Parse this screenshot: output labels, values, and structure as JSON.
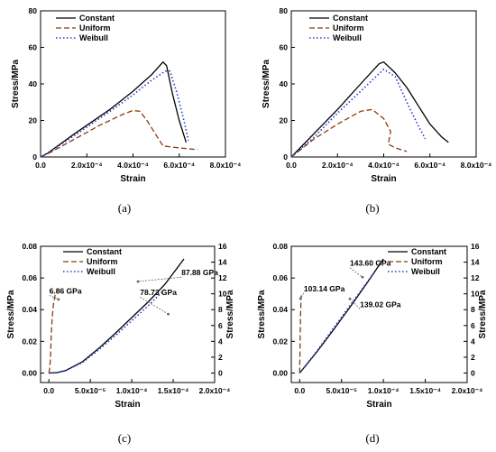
{
  "colors": {
    "Constant": "#000000",
    "Uniform": "#8b3a0f",
    "Weibull": "#1f3cc7",
    "annotation_arrow": "#666666"
  },
  "chart_data": [
    {
      "id": "a",
      "panel_label": "(a)",
      "type": "line",
      "xlabel": "Strain",
      "ylabel": "Stress/MPa",
      "xlim": [
        0,
        0.0008
      ],
      "ylim": [
        0,
        80
      ],
      "xticks": [
        0,
        0.0002,
        0.0004,
        0.0006,
        0.0008
      ],
      "xtick_labels": [
        "0.0",
        "2.0x10⁻⁴",
        "4.0x10⁻⁴",
        "6.0x10⁻⁴",
        "8.0x10⁻⁴"
      ],
      "yticks": [
        0,
        20,
        40,
        60,
        80
      ],
      "ytick_labels": [
        "0",
        "20",
        "40",
        "60",
        "80"
      ],
      "legend": "top-left",
      "series": [
        {
          "name": "Constant",
          "style": "solid",
          "x": [
            0,
            3e-05,
            0.00015,
            0.0003,
            0.0004,
            0.00048,
            0.00053,
            0.000545,
            0.00057,
            0.0006,
            0.00063
          ],
          "y": [
            0,
            2,
            13,
            26,
            36,
            45,
            52,
            50,
            35,
            20,
            8
          ]
        },
        {
          "name": "Uniform",
          "style": "dashed",
          "x": [
            0,
            5e-05,
            0.00015,
            0.00025,
            0.00035,
            0.0004,
            0.00043,
            0.00046,
            0.0005,
            0.00053,
            0.0006,
            0.00068
          ],
          "y": [
            0,
            3,
            10,
            17,
            23,
            25.5,
            25,
            20,
            12,
            6,
            5,
            4
          ]
        },
        {
          "name": "Weibull",
          "style": "dotted",
          "x": [
            0,
            3e-05,
            0.00015,
            0.0003,
            0.0004,
            0.00048,
            0.00054,
            0.00056,
            0.00059,
            0.00062,
            0.00064
          ],
          "y": [
            0,
            2,
            12,
            25,
            34,
            42,
            47,
            47,
            35,
            20,
            9
          ]
        }
      ]
    },
    {
      "id": "b",
      "panel_label": "(b)",
      "type": "line",
      "xlabel": "Strain",
      "ylabel": "Stress/MPa",
      "xlim": [
        0,
        0.0008
      ],
      "ylim": [
        0,
        80
      ],
      "xticks": [
        0,
        0.0002,
        0.0004,
        0.0006,
        0.0008
      ],
      "xtick_labels": [
        "0.0",
        "2.0x10⁻⁴",
        "4.0x10⁻⁴",
        "6.0x10⁻⁴",
        "8.0x10⁻⁴"
      ],
      "yticks": [
        0,
        20,
        40,
        60,
        80
      ],
      "ytick_labels": [
        "0",
        "20",
        "40",
        "60",
        "80"
      ],
      "legend": "top-right",
      "series": [
        {
          "name": "Constant",
          "style": "solid",
          "x": [
            0,
            0.0001,
            0.0002,
            0.0003,
            0.00038,
            0.0004,
            0.00045,
            0.0005,
            0.00055,
            0.0006,
            0.00065,
            0.00068
          ],
          "y": [
            0,
            13,
            26,
            40,
            51,
            52,
            46,
            38,
            28,
            18,
            11,
            8
          ]
        },
        {
          "name": "Uniform",
          "style": "dashed",
          "x": [
            0,
            0.0001,
            0.0002,
            0.0003,
            0.00035,
            0.0004,
            0.00043,
            0.00042,
            0.00045,
            0.0005
          ],
          "y": [
            0,
            10,
            18,
            25,
            26,
            21,
            14,
            7,
            5,
            3
          ]
        },
        {
          "name": "Weibull",
          "style": "dotted",
          "x": [
            0,
            0.0001,
            0.0002,
            0.0003,
            0.0004,
            0.00045,
            0.0005,
            0.00055,
            0.00058
          ],
          "y": [
            0,
            11,
            24,
            36,
            48,
            44,
            30,
            17,
            10
          ]
        }
      ]
    },
    {
      "id": "c",
      "panel_label": "(c)",
      "type": "line",
      "xlabel": "Strain",
      "ylabel": "Stress/MPa",
      "ylabel_right": "Stress/MPa",
      "xlim": [
        -1e-05,
        0.0002
      ],
      "ylim": [
        -0.006,
        0.08
      ],
      "ylim_right": [
        -1.2,
        16
      ],
      "xticks": [
        0,
        5e-05,
        0.0001,
        0.00015,
        0.0002
      ],
      "xtick_labels": [
        "0.0",
        "5.0x10⁻⁵",
        "1.0x10⁻⁴",
        "1.5x10⁻⁴",
        "2.0x10⁻⁴"
      ],
      "yticks": [
        0,
        0.02,
        0.04,
        0.06,
        0.08
      ],
      "ytick_labels": [
        "0.00",
        "0.02",
        "0.04",
        "0.06",
        "0.08"
      ],
      "yticks_right": [
        0,
        2,
        4,
        6,
        8,
        10,
        12,
        14,
        16
      ],
      "ytick_labels_right": [
        "0",
        "2",
        "4",
        "6",
        "8",
        "10",
        "12",
        "14",
        "16"
      ],
      "legend": "top-center",
      "annotations": [
        {
          "text": "6.86 GPa",
          "x": 1.15e-05,
          "y": 0.0465,
          "tx": 5e-07,
          "ty": 0.049
        },
        {
          "text": "87.88 GPa",
          "x": 0.0001075,
          "y": 0.0578,
          "tx": 0.00016,
          "ty": 0.0605
        },
        {
          "text": "78.73 GPa",
          "x": 0.000144,
          "y": 0.0372,
          "tx": 0.00011,
          "ty": 0.048
        }
      ],
      "series": [
        {
          "name": "Constant",
          "style": "solid",
          "axis": "right",
          "x": [
            0,
            1e-05,
            2e-05,
            4e-05,
            6e-05,
            8e-05,
            0.0001,
            0.00012,
            0.00014,
            0.000163
          ],
          "y": [
            0,
            0.05,
            0.3,
            1.4,
            3.1,
            5.0,
            7.0,
            9.0,
            11.2,
            14.4
          ]
        },
        {
          "name": "Uniform",
          "style": "dashed",
          "axis": "left",
          "x": [
            0,
            1e-06,
            2e-06,
            3e-06,
            4e-06,
            5e-06,
            6e-06,
            8e-06,
            1e-05
          ],
          "y": [
            0,
            0.003,
            0.01,
            0.025,
            0.035,
            0.041,
            0.045,
            0.05,
            0.052
          ]
        },
        {
          "name": "Weibull",
          "style": "dotted",
          "axis": "right",
          "x": [
            0,
            1e-05,
            2e-05,
            4e-05,
            6e-05,
            8e-05,
            0.0001,
            0.00012,
            0.00014
          ],
          "y": [
            0,
            0.05,
            0.3,
            1.3,
            2.9,
            4.7,
            6.6,
            8.5,
            10.6
          ]
        }
      ]
    },
    {
      "id": "d",
      "panel_label": "(d)",
      "type": "line",
      "xlabel": "Strain",
      "ylabel": "Stress/MPa",
      "ylabel_right": "Stress/MPa",
      "xlim": [
        -1e-05,
        0.0002
      ],
      "ylim": [
        -0.006,
        0.08
      ],
      "ylim_right": [
        -1.2,
        16
      ],
      "xticks": [
        0,
        5e-05,
        0.0001,
        0.00015,
        0.0002
      ],
      "xtick_labels": [
        "0.0",
        "5.0x10⁻⁵",
        "1.0x10⁻⁴",
        "1.5x10⁻⁴",
        "2.0x10⁻⁴"
      ],
      "yticks": [
        0,
        0.02,
        0.04,
        0.06,
        0.08
      ],
      "ytick_labels": [
        "0.00",
        "0.02",
        "0.04",
        "0.06",
        "0.08"
      ],
      "yticks_right": [
        0,
        2,
        4,
        6,
        8,
        10,
        12,
        14,
        16
      ],
      "ytick_labels_right": [
        "0",
        "2",
        "4",
        "6",
        "8",
        "10",
        "12",
        "14",
        "16"
      ],
      "legend": "top-right",
      "annotations": [
        {
          "text": "103.14 GPa",
          "x": 1e-06,
          "y": 0.047,
          "tx": 5e-06,
          "ty": 0.0505
        },
        {
          "text": "143.60 GPa",
          "x": 7.5e-05,
          "y": 0.0605,
          "tx": 6e-05,
          "ty": 0.0665
        },
        {
          "text": "139.02 GPa",
          "x": 6e-05,
          "y": 0.0468,
          "tx": 7.2e-05,
          "ty": 0.0405
        }
      ],
      "series": [
        {
          "name": "Constant",
          "style": "solid",
          "axis": "right",
          "x": [
            0,
            2e-05,
            4e-05,
            6e-05,
            8e-05,
            0.0001
          ],
          "y": [
            0,
            2.6,
            5.4,
            8.3,
            11.3,
            14.4
          ]
        },
        {
          "name": "Uniform",
          "style": "dashed",
          "axis": "left",
          "x": [
            0,
            5e-07,
            1e-06,
            1.5e-06,
            2e-06
          ],
          "y": [
            0,
            0.02,
            0.035,
            0.045,
            0.049
          ]
        },
        {
          "name": "Weibull",
          "style": "dotted",
          "axis": "right",
          "x": [
            0,
            2e-05,
            4e-05,
            6e-05,
            8e-05,
            9e-05
          ],
          "y": [
            0,
            2.7,
            5.6,
            8.5,
            11.4,
            12.8
          ]
        }
      ]
    }
  ]
}
